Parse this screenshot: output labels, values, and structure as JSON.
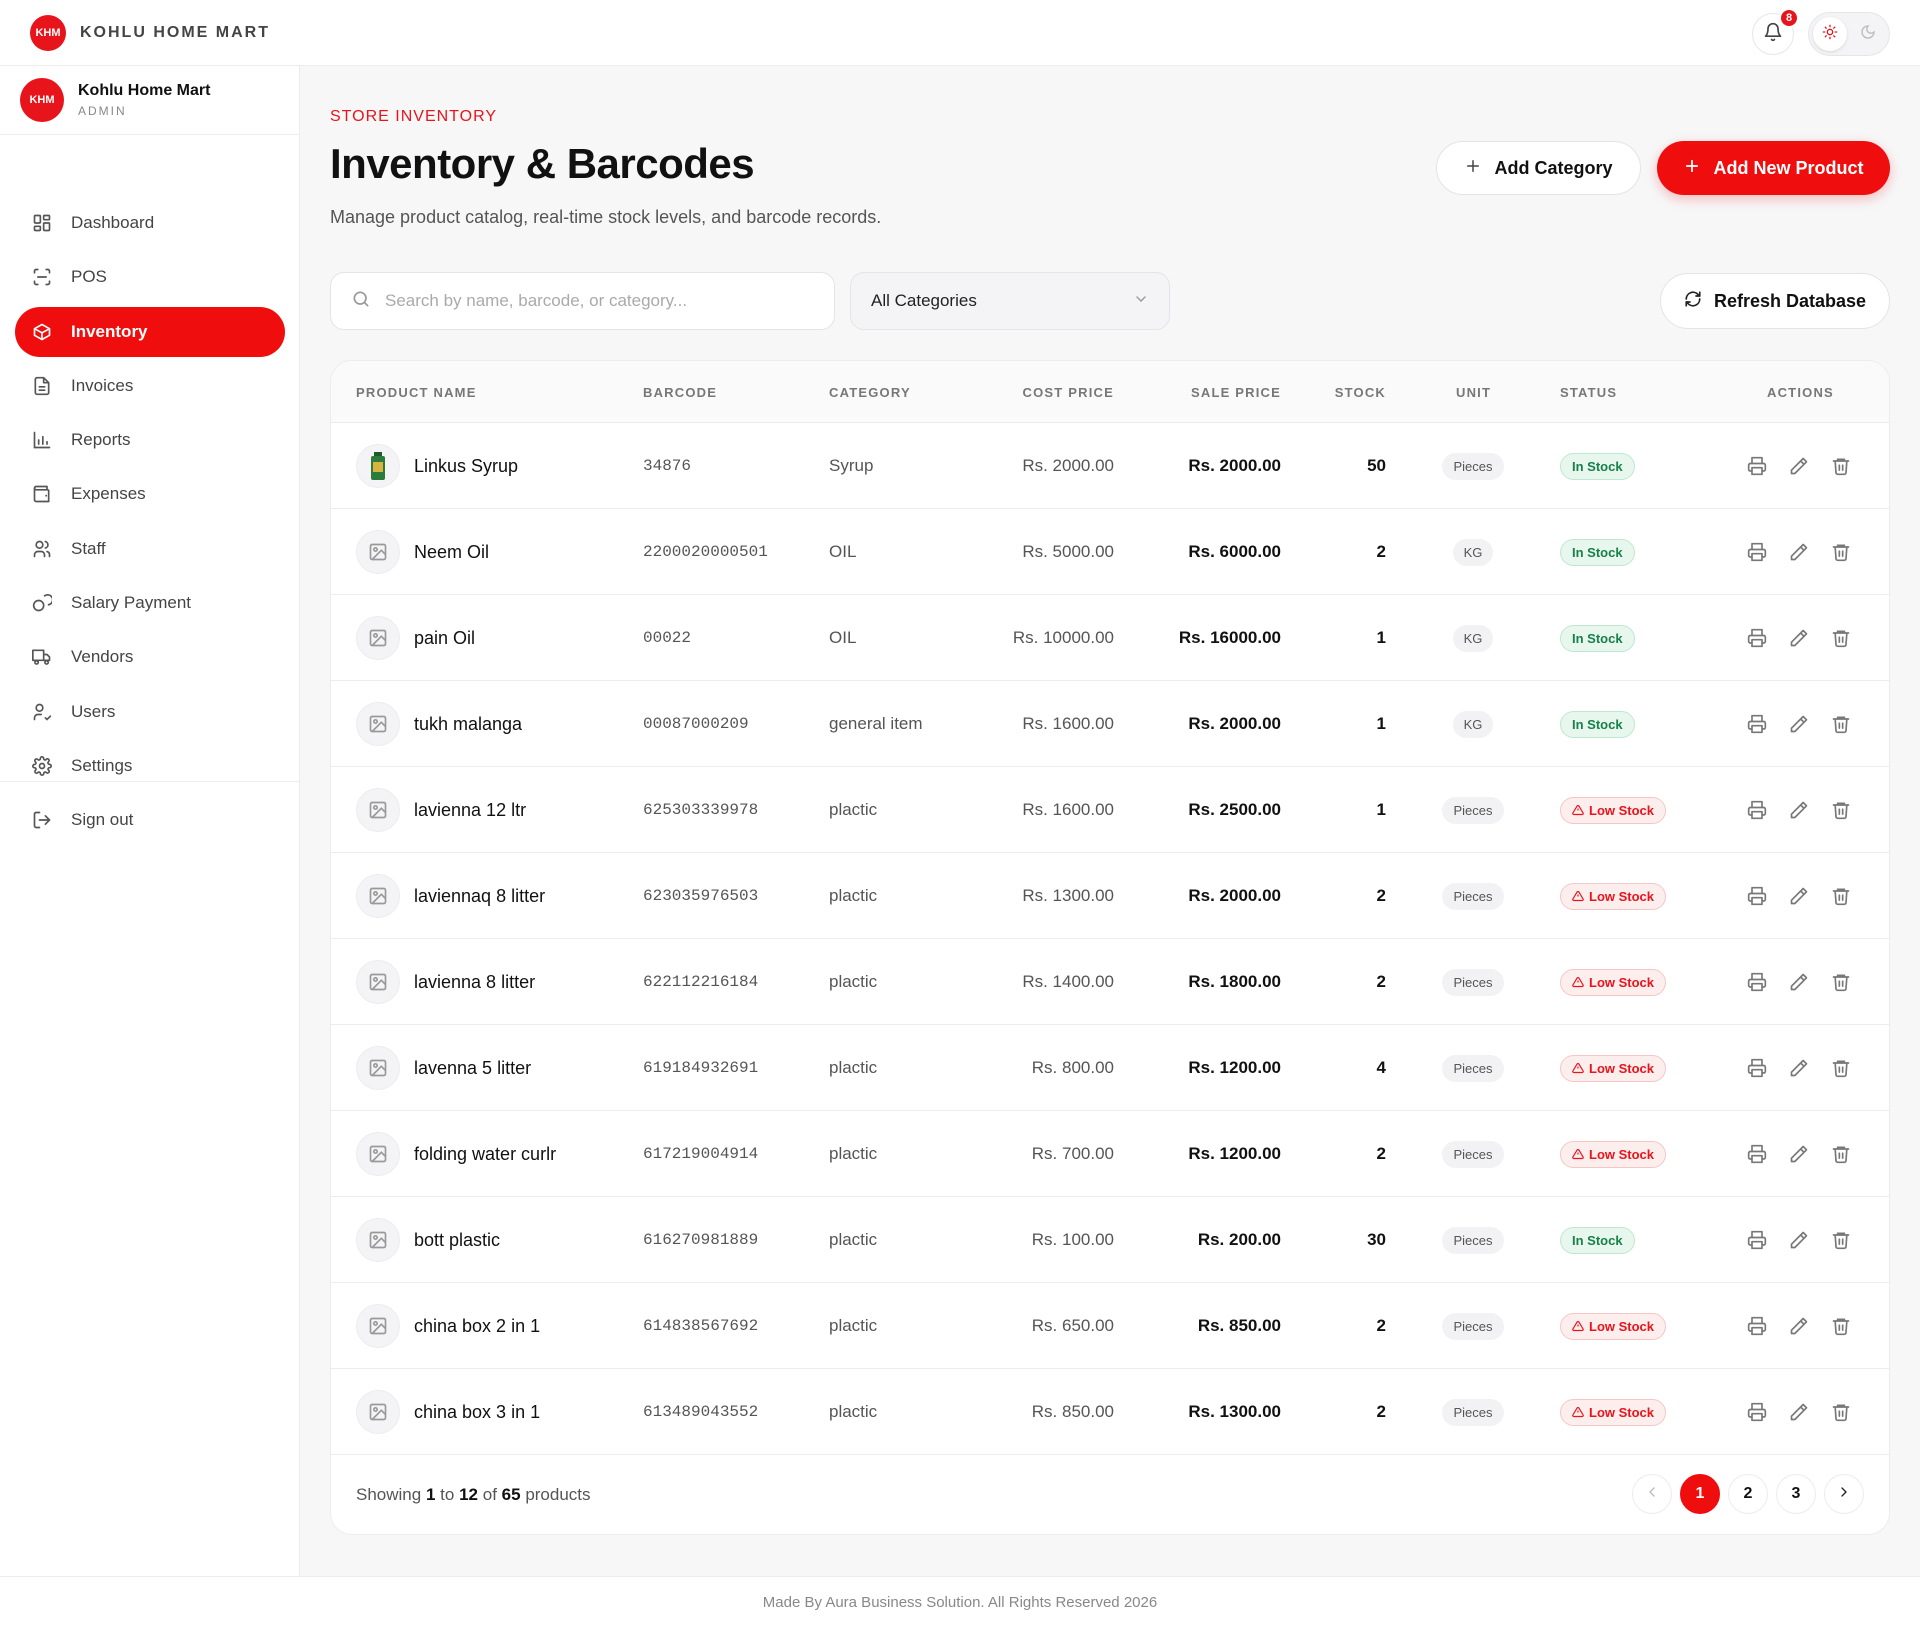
{
  "topbar": {
    "brand": "KOHLU HOME MART",
    "logo_text": "KHM",
    "notification_count": "8"
  },
  "sidebar": {
    "user_name": "Kohlu Home Mart",
    "user_role": "ADMIN",
    "items": [
      {
        "label": "Dashboard",
        "icon": "dashboard-icon"
      },
      {
        "label": "POS",
        "icon": "scan-icon"
      },
      {
        "label": "Inventory",
        "icon": "box-icon"
      },
      {
        "label": "Invoices",
        "icon": "file-icon"
      },
      {
        "label": "Reports",
        "icon": "bar-chart-icon"
      },
      {
        "label": "Expenses",
        "icon": "wallet-icon"
      },
      {
        "label": "Staff",
        "icon": "users-icon"
      },
      {
        "label": "Salary Payment",
        "icon": "coins-icon"
      },
      {
        "label": "Vendors",
        "icon": "truck-icon"
      },
      {
        "label": "Users",
        "icon": "user-check-icon"
      },
      {
        "label": "Settings",
        "icon": "gear-icon"
      }
    ],
    "active_index": 2,
    "signout_label": "Sign out"
  },
  "header": {
    "eyebrow": "STORE INVENTORY",
    "title": "Inventory & Barcodes",
    "subtitle": "Manage product catalog, real-time stock levels, and barcode records.",
    "add_category_label": "Add Category",
    "add_product_label": "Add New Product"
  },
  "filters": {
    "search_placeholder": "Search by name, barcode, or category...",
    "category_selected": "All Categories",
    "refresh_label": "Refresh Database"
  },
  "table": {
    "columns": [
      "PRODUCT NAME",
      "BARCODE",
      "CATEGORY",
      "COST PRICE",
      "SALE PRICE",
      "STOCK",
      "UNIT",
      "STATUS",
      "ACTIONS"
    ],
    "rows": [
      {
        "name": "Linkus Syrup",
        "barcode": "34876",
        "category": "Syrup",
        "cost": "Rs. 2000.00",
        "sale": "Rs. 2000.00",
        "stock": "50",
        "unit": "Pieces",
        "status": "In Stock",
        "status_type": "in",
        "has_image": true
      },
      {
        "name": "Neem Oil",
        "barcode": "2200020000501",
        "category": "OIL",
        "cost": "Rs. 5000.00",
        "sale": "Rs. 6000.00",
        "stock": "2",
        "unit": "KG",
        "status": "In Stock",
        "status_type": "in",
        "has_image": false
      },
      {
        "name": "pain Oil",
        "barcode": "00022",
        "category": "OIL",
        "cost": "Rs. 10000.00",
        "sale": "Rs. 16000.00",
        "stock": "1",
        "unit": "KG",
        "status": "In Stock",
        "status_type": "in",
        "has_image": false
      },
      {
        "name": "tukh malanga",
        "barcode": "00087000209",
        "category": "general item",
        "cost": "Rs. 1600.00",
        "sale": "Rs. 2000.00",
        "stock": "1",
        "unit": "KG",
        "status": "In Stock",
        "status_type": "in",
        "has_image": false
      },
      {
        "name": "lavienna 12 ltr",
        "barcode": "625303339978",
        "category": "plactic",
        "cost": "Rs. 1600.00",
        "sale": "Rs. 2500.00",
        "stock": "1",
        "unit": "Pieces",
        "status": "Low Stock",
        "status_type": "low",
        "has_image": false
      },
      {
        "name": "laviennaq 8 litter",
        "barcode": "623035976503",
        "category": "plactic",
        "cost": "Rs. 1300.00",
        "sale": "Rs. 2000.00",
        "stock": "2",
        "unit": "Pieces",
        "status": "Low Stock",
        "status_type": "low",
        "has_image": false
      },
      {
        "name": "lavienna 8 litter",
        "barcode": "622112216184",
        "category": "plactic",
        "cost": "Rs. 1400.00",
        "sale": "Rs. 1800.00",
        "stock": "2",
        "unit": "Pieces",
        "status": "Low Stock",
        "status_type": "low",
        "has_image": false
      },
      {
        "name": "lavenna 5 litter",
        "barcode": "619184932691",
        "category": "plactic",
        "cost": "Rs. 800.00",
        "sale": "Rs. 1200.00",
        "stock": "4",
        "unit": "Pieces",
        "status": "Low Stock",
        "status_type": "low",
        "has_image": false
      },
      {
        "name": "folding water curlr",
        "barcode": "617219004914",
        "category": "plactic",
        "cost": "Rs. 700.00",
        "sale": "Rs. 1200.00",
        "stock": "2",
        "unit": "Pieces",
        "status": "Low Stock",
        "status_type": "low",
        "has_image": false
      },
      {
        "name": "bott plastic",
        "barcode": "616270981889",
        "category": "plactic",
        "cost": "Rs. 100.00",
        "sale": "Rs. 200.00",
        "stock": "30",
        "unit": "Pieces",
        "status": "In Stock",
        "status_type": "in",
        "has_image": false
      },
      {
        "name": "china box 2 in 1",
        "barcode": "614838567692",
        "category": "plactic",
        "cost": "Rs. 650.00",
        "sale": "Rs. 850.00",
        "stock": "2",
        "unit": "Pieces",
        "status": "Low Stock",
        "status_type": "low",
        "has_image": false
      },
      {
        "name": "china box 3 in 1",
        "barcode": "613489043552",
        "category": "plactic",
        "cost": "Rs. 850.00",
        "sale": "Rs. 1300.00",
        "stock": "2",
        "unit": "Pieces",
        "status": "Low Stock",
        "status_type": "low",
        "has_image": false
      }
    ]
  },
  "pagination": {
    "showing_prefix": "Showing",
    "from": "1",
    "to_word": "to",
    "to": "12",
    "of_word": "of",
    "total": "65",
    "suffix": "products",
    "pages": [
      "1",
      "2",
      "3"
    ],
    "current": "1"
  },
  "footer": "Made By Aura Business Solution. All Rights Reserved 2026",
  "colors": {
    "accent": "#f00d0d",
    "in_stock": "#18804a",
    "low_stock": "#e8141b"
  }
}
